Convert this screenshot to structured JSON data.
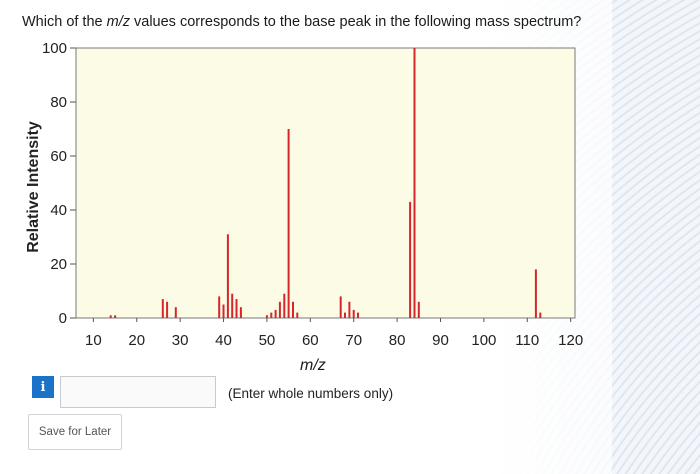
{
  "question": {
    "prefix": "Which of the ",
    "italic": "m/z",
    "suffix": " values corresponds to the base peak in the following mass spectrum?"
  },
  "chart_data": {
    "type": "bar",
    "ylabel": "Relative Intensity",
    "xlabel": "m/z",
    "xlim": [
      6,
      121
    ],
    "ylim": [
      0,
      100
    ],
    "x_ticks": [
      10,
      20,
      30,
      40,
      50,
      60,
      70,
      80,
      90,
      100,
      110,
      120
    ],
    "y_ticks": [
      0,
      20,
      40,
      60,
      80,
      100
    ],
    "plot_background": "#fbfbe6",
    "bar_color": "#d7262b",
    "peaks": [
      {
        "x": 14,
        "y": 1
      },
      {
        "x": 15,
        "y": 1
      },
      {
        "x": 26,
        "y": 7
      },
      {
        "x": 27,
        "y": 6
      },
      {
        "x": 29,
        "y": 4
      },
      {
        "x": 39,
        "y": 8
      },
      {
        "x": 40,
        "y": 5
      },
      {
        "x": 41,
        "y": 31
      },
      {
        "x": 42,
        "y": 9
      },
      {
        "x": 43,
        "y": 7
      },
      {
        "x": 44,
        "y": 4
      },
      {
        "x": 50,
        "y": 1
      },
      {
        "x": 51,
        "y": 2
      },
      {
        "x": 52,
        "y": 3
      },
      {
        "x": 53,
        "y": 6
      },
      {
        "x": 54,
        "y": 9
      },
      {
        "x": 55,
        "y": 70
      },
      {
        "x": 56,
        "y": 6
      },
      {
        "x": 57,
        "y": 2
      },
      {
        "x": 67,
        "y": 8
      },
      {
        "x": 68,
        "y": 2
      },
      {
        "x": 69,
        "y": 6
      },
      {
        "x": 70,
        "y": 3
      },
      {
        "x": 71,
        "y": 2
      },
      {
        "x": 83,
        "y": 43
      },
      {
        "x": 84,
        "y": 100
      },
      {
        "x": 85,
        "y": 6
      },
      {
        "x": 112,
        "y": 18
      },
      {
        "x": 113,
        "y": 2
      }
    ]
  },
  "answer": {
    "info_icon": "info-icon",
    "value": "",
    "placeholder": "",
    "hint": "(Enter whole numbers only)"
  },
  "save_button": "Save for Later"
}
